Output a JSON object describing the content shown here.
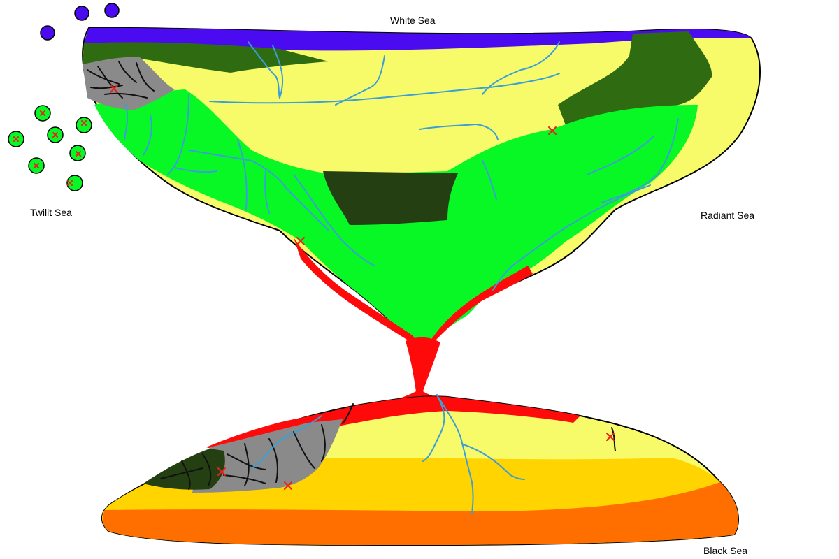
{
  "labels": {
    "north": "White Sea",
    "west": "Twilit Sea",
    "east": "Radiant Sea",
    "south": "Black Sea"
  },
  "colors": {
    "sea_blue": "#4B0BF0",
    "pale_yellow": "#F7FB6A",
    "bright_green": "#08F826",
    "forest_green": "#2F6B10",
    "dark_green": "#243F12",
    "rock_gray": "#8A8A8A",
    "lava_red": "#FF0A0A",
    "gold": "#FFD400",
    "orange": "#FF6F00",
    "river_blue": "#3A9FD8",
    "marker_red": "#E8231E",
    "outline": "#000000"
  },
  "islands": {
    "blue_count": 3,
    "green_marked_count": 7
  }
}
